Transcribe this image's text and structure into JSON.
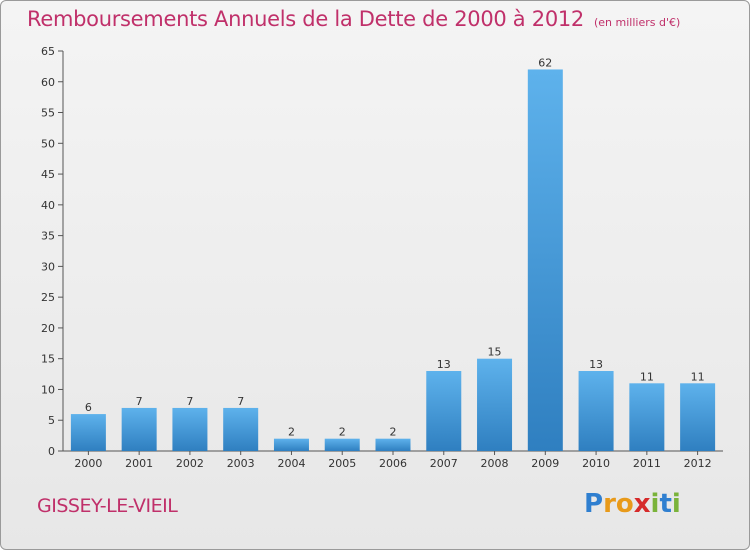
{
  "title": "Remboursements Annuels de la Dette de 2000 à 2012",
  "unit_note": "(en milliers d'€)",
  "commune": "GISSEY-LE-VIEIL",
  "logo": {
    "letters": [
      "P",
      "r",
      "o",
      "x",
      "i",
      "t",
      "i"
    ],
    "colors": [
      "#2f7fd0",
      "#e89a1a",
      "#e89a1a",
      "#d62a2a",
      "#7ab33a",
      "#2f7fd0",
      "#7ab33a"
    ]
  },
  "chart_data": {
    "type": "bar",
    "categories": [
      "2000",
      "2001",
      "2002",
      "2003",
      "2004",
      "2005",
      "2006",
      "2007",
      "2008",
      "2009",
      "2010",
      "2011",
      "2012"
    ],
    "values": [
      6,
      7,
      7,
      7,
      2,
      2,
      2,
      13,
      15,
      62,
      13,
      11,
      11
    ],
    "data_labels": [
      "6",
      "7",
      "7",
      "7",
      "2",
      "2",
      "2",
      "13",
      "15",
      "62",
      "13",
      "11",
      "11"
    ],
    "ylim": [
      0,
      65
    ],
    "yticks": [
      0,
      5,
      10,
      15,
      20,
      25,
      30,
      35,
      40,
      45,
      50,
      55,
      60,
      65
    ],
    "grid": false,
    "bar_color": "#4a9fde"
  }
}
